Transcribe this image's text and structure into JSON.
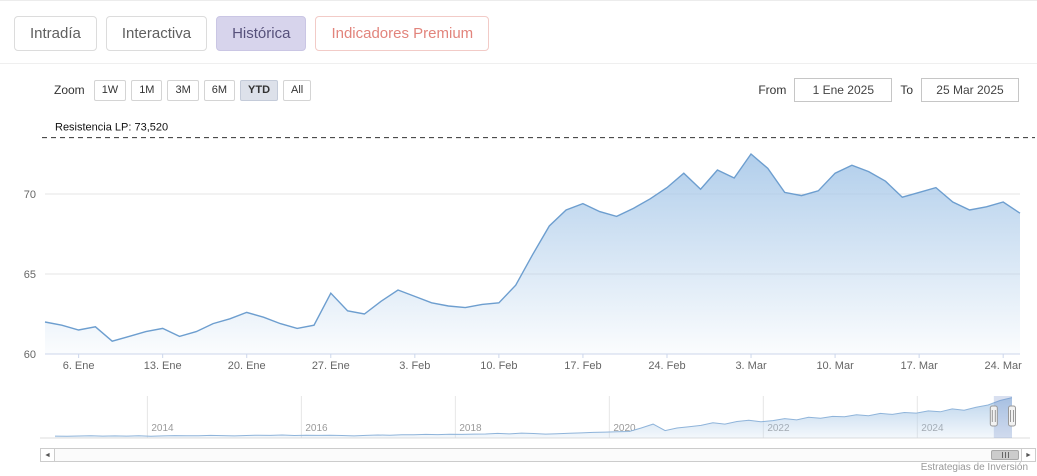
{
  "header": {
    "tabs": [
      {
        "label": "Intradía",
        "active": false,
        "style": "default"
      },
      {
        "label": "Interactiva",
        "active": false,
        "style": "default"
      },
      {
        "label": "Histórica",
        "active": true,
        "style": "active"
      },
      {
        "label": "Indicadores Premium",
        "active": false,
        "style": "premium"
      }
    ]
  },
  "toolbar": {
    "zoom_label": "Zoom",
    "range_buttons": [
      {
        "label": "1W",
        "selected": false
      },
      {
        "label": "1M",
        "selected": false
      },
      {
        "label": "3M",
        "selected": false
      },
      {
        "label": "6M",
        "selected": false
      },
      {
        "label": "YTD",
        "selected": true
      },
      {
        "label": "All",
        "selected": false
      }
    ],
    "from_label": "From",
    "from_value": "1 Ene 2025",
    "to_label": "To",
    "to_value": "25 Mar 2025"
  },
  "chart_data": {
    "type": "area",
    "title": "",
    "xlabel": "",
    "ylabel": "",
    "ylim": [
      60,
      74.5
    ],
    "yticks": [
      60,
      65,
      70
    ],
    "grid": true,
    "annotation": {
      "label": "Resistencia LP: 73,520",
      "value": 73.52
    },
    "line_color": "#6d9ecf",
    "fill_top": "#a9c9e9",
    "x_labels": [
      "6. Ene",
      "13. Ene",
      "20. Ene",
      "27. Ene",
      "3. Feb",
      "10. Feb",
      "17. Feb",
      "24. Feb",
      "3. Mar",
      "10. Mar",
      "17. Mar",
      "24. Mar"
    ],
    "tick_indices": [
      2,
      7,
      12,
      17,
      22,
      27,
      32,
      37,
      42,
      47,
      52,
      57
    ],
    "dates": [
      "2 Ene",
      "3 Ene",
      "6 Ene",
      "7 Ene",
      "8 Ene",
      "9 Ene",
      "10 Ene",
      "13 Ene",
      "14 Ene",
      "15 Ene",
      "16 Ene",
      "17 Ene",
      "20 Ene",
      "21 Ene",
      "22 Ene",
      "23 Ene",
      "24 Ene",
      "27 Ene",
      "28 Ene",
      "29 Ene",
      "30 Ene",
      "31 Ene",
      "3 Feb",
      "4 Feb",
      "5 Feb",
      "6 Feb",
      "7 Feb",
      "10 Feb",
      "11 Feb",
      "12 Feb",
      "13 Feb",
      "14 Feb",
      "17 Feb",
      "18 Feb",
      "19 Feb",
      "20 Feb",
      "21 Feb",
      "24 Feb",
      "25 Feb",
      "26 Feb",
      "27 Feb",
      "28 Feb",
      "3 Mar",
      "4 Mar",
      "5 Mar",
      "6 Mar",
      "7 Mar",
      "10 Mar",
      "11 Mar",
      "12 Mar",
      "13 Mar",
      "14 Mar",
      "17 Mar",
      "18 Mar",
      "19 Mar",
      "20 Mar",
      "21 Mar",
      "24 Mar",
      "25 Mar"
    ],
    "values": [
      62.0,
      61.8,
      61.5,
      61.7,
      60.8,
      61.1,
      61.4,
      61.6,
      61.1,
      61.4,
      61.9,
      62.2,
      62.6,
      62.3,
      61.9,
      61.6,
      61.8,
      63.8,
      62.7,
      62.5,
      63.3,
      64.0,
      63.6,
      63.2,
      63.0,
      62.9,
      63.1,
      63.2,
      64.3,
      66.2,
      68.0,
      69.0,
      69.4,
      68.9,
      68.6,
      69.1,
      69.7,
      70.4,
      71.3,
      70.3,
      71.5,
      71.0,
      72.5,
      71.6,
      70.1,
      69.9,
      70.2,
      71.3,
      71.8,
      71.4,
      70.8,
      69.8,
      70.1,
      70.4,
      69.5,
      69.0,
      69.2,
      69.5,
      68.8
    ]
  },
  "navigator": {
    "year_labels": [
      "2014",
      "2016",
      "2018",
      "2020",
      "2022",
      "2024"
    ],
    "year_start": 2012.8,
    "year_end": 2025.23,
    "value_range": [
      10,
      75
    ],
    "selected_range": {
      "from_frac": 0.981,
      "to_frac": 1.0
    },
    "values": [
      13,
      12.6,
      13.1,
      13.4,
      12.9,
      13.2,
      13.0,
      13.5,
      12.8,
      13.3,
      13.7,
      13.4,
      13.6,
      14.1,
      13.7,
      13.3,
      13.9,
      14.3,
      14.1,
      14.6,
      13.9,
      14.3,
      14.0,
      14.4,
      13.9,
      13.3,
      14.1,
      14.7,
      14.3,
      14.9,
      15.1,
      15.6,
      15.3,
      15.9,
      15.5,
      16.0,
      16.2,
      17.1,
      16.3,
      17.6,
      16.9,
      16.1,
      16.6,
      17.3,
      17.9,
      18.6,
      19.1,
      19.6,
      20.0,
      25.5,
      31.5,
      21.5,
      25.5,
      27.5,
      29.5,
      33.5,
      31.5,
      35.5,
      37.5,
      35.0,
      37.0,
      40.0,
      38.0,
      42.0,
      40.5,
      43.5,
      43.0,
      46.0,
      44.5,
      48.0,
      46.5,
      49.5,
      48.5,
      52.0,
      50.5,
      55.0,
      53.0,
      57.5,
      61.0,
      68.0,
      72.5
    ],
    "fill_top": "#b5d0ea",
    "line_color": "#8fb4da",
    "mask_color": "rgba(102,133,194,0.25)"
  },
  "scrollbar": {
    "left_arrow": "◄",
    "right_arrow": "►"
  },
  "credits": "Estrategias de Inversión"
}
